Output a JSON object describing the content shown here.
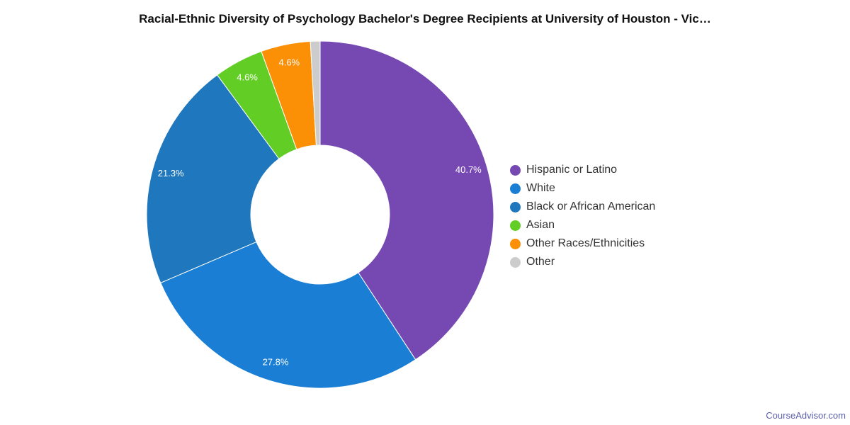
{
  "chart_data": {
    "type": "pie",
    "title": "Racial-Ethnic Diversity of Psychology Bachelor's Degree Recipients at University of Houston - Vic…",
    "donut": true,
    "legend_position": "right",
    "slices": [
      {
        "name": "Hispanic or Latino",
        "value": 40.7,
        "label": "40.7%",
        "color": "#7549b1"
      },
      {
        "name": "White",
        "value": 27.8,
        "label": "27.8%",
        "color": "#1a7fd4"
      },
      {
        "name": "Black or African American",
        "value": 21.3,
        "label": "21.3%",
        "color": "#1f77bd"
      },
      {
        "name": "Asian",
        "value": 4.6,
        "label": "4.6%",
        "color": "#62cd25"
      },
      {
        "name": "Other Races/Ethnicities",
        "value": 4.6,
        "label": "4.6%",
        "color": "#fb8f05"
      },
      {
        "name": "Other",
        "value": 0.9,
        "label": "",
        "color": "#cccccc"
      }
    ]
  },
  "footer": {
    "source": "CourseAdvisor.com"
  }
}
